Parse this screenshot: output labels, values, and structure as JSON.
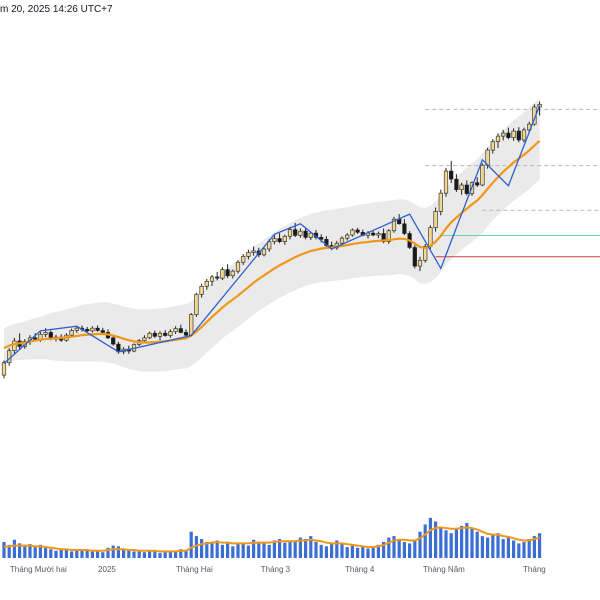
{
  "header": {
    "text": "m 20, 2025 14:26 UTC+7"
  },
  "colors": {
    "candle_up": "#f0d890",
    "candle_down": "#1a1a1a",
    "candle_outline": "#222222",
    "ma_line": "#f0971a",
    "volume_bar": "#3c6fd6",
    "volume_ma": "#f0971a",
    "zigzag": "#2f5fd0",
    "channel_fill": "#d8d8d8",
    "level_green": "#6fd0b8",
    "level_red": "#d04040",
    "level_dashed": "#b8b8b8"
  },
  "chart_data": {
    "type": "candlestick",
    "x_axis_labels": [
      "Tháng Mười hai",
      "2025",
      "Tháng Hai",
      "Tháng 3",
      "Tháng 4",
      "Tháng Năm",
      "Tháng"
    ],
    "x_axis_label_positions": [
      11,
      33,
      61,
      87,
      114,
      141,
      170
    ],
    "price_range": [
      0,
      100
    ],
    "candles": [
      [
        26.0,
        29.8,
        25.2,
        29.2
      ],
      [
        29.2,
        33.0,
        28.4,
        32.3
      ],
      [
        32.3,
        35.6,
        31.4,
        34.8
      ],
      [
        34.8,
        36.8,
        32.5,
        33.4
      ],
      [
        33.4,
        35.3,
        32.8,
        34.7
      ],
      [
        34.7,
        36.3,
        33.8,
        35.6
      ],
      [
        35.6,
        36.8,
        34.7,
        35.2
      ],
      [
        35.2,
        37.2,
        34.6,
        36.5
      ],
      [
        36.5,
        38.1,
        35.8,
        37.0
      ],
      [
        37.0,
        37.5,
        35.0,
        35.6
      ],
      [
        35.6,
        36.4,
        34.7,
        35.8
      ],
      [
        35.8,
        36.5,
        34.6,
        35.0
      ],
      [
        35.0,
        36.8,
        34.6,
        36.3
      ],
      [
        36.3,
        38.0,
        35.7,
        37.5
      ],
      [
        37.5,
        38.6,
        36.9,
        38.1
      ],
      [
        38.1,
        38.8,
        37.2,
        37.8
      ],
      [
        37.8,
        38.4,
        37.0,
        37.4
      ],
      [
        37.4,
        38.6,
        37.0,
        38.1
      ],
      [
        38.1,
        38.8,
        37.2,
        37.5
      ],
      [
        37.5,
        38.2,
        36.6,
        37.0
      ],
      [
        37.0,
        37.8,
        35.3,
        35.6
      ],
      [
        35.6,
        36.2,
        33.6,
        34.0
      ],
      [
        34.0,
        34.6,
        31.5,
        32.0
      ],
      [
        32.0,
        33.2,
        31.4,
        32.7
      ],
      [
        32.7,
        33.6,
        31.5,
        32.2
      ],
      [
        32.2,
        34.2,
        31.9,
        33.9
      ],
      [
        33.9,
        35.3,
        33.5,
        34.9
      ],
      [
        34.9,
        36.3,
        34.2,
        35.6
      ],
      [
        35.6,
        37.2,
        35.3,
        36.8
      ],
      [
        36.8,
        37.5,
        35.6,
        36.0
      ],
      [
        36.0,
        37.3,
        35.0,
        36.8
      ],
      [
        36.8,
        37.6,
        35.9,
        36.2
      ],
      [
        36.2,
        37.8,
        35.6,
        37.2
      ],
      [
        37.2,
        38.6,
        36.6,
        38.0
      ],
      [
        38.0,
        39.0,
        36.8,
        37.0
      ],
      [
        37.0,
        37.8,
        35.7,
        36.3
      ],
      [
        36.3,
        42.0,
        36.0,
        41.6
      ],
      [
        41.6,
        47.2,
        41.0,
        46.8
      ],
      [
        46.8,
        49.5,
        46.0,
        48.9
      ],
      [
        48.9,
        50.8,
        48.0,
        50.2
      ],
      [
        50.2,
        51.8,
        49.0,
        51.3
      ],
      [
        51.3,
        52.6,
        50.4,
        51.0
      ],
      [
        51.0,
        53.8,
        50.5,
        53.2
      ],
      [
        53.2,
        54.6,
        51.0,
        51.6
      ],
      [
        51.6,
        53.2,
        50.9,
        52.8
      ],
      [
        52.8,
        55.6,
        52.2,
        55.1
      ],
      [
        55.1,
        57.2,
        54.4,
        56.6
      ],
      [
        56.6,
        58.3,
        55.8,
        57.6
      ],
      [
        57.6,
        59.2,
        56.8,
        58.0
      ],
      [
        58.0,
        58.8,
        56.4,
        57.0
      ],
      [
        57.0,
        59.0,
        56.6,
        58.5
      ],
      [
        58.5,
        61.0,
        57.8,
        60.4
      ],
      [
        60.4,
        62.1,
        59.7,
        61.2
      ],
      [
        61.2,
        62.6,
        60.0,
        60.4
      ],
      [
        60.4,
        62.2,
        59.6,
        61.8
      ],
      [
        61.8,
        64.2,
        61.0,
        63.5
      ],
      [
        63.5,
        65.2,
        61.6,
        62.0
      ],
      [
        62.0,
        63.8,
        61.4,
        63.1
      ],
      [
        63.1,
        64.0,
        61.0,
        61.5
      ],
      [
        61.5,
        63.0,
        60.8,
        62.6
      ],
      [
        62.6,
        63.4,
        61.0,
        61.5
      ],
      [
        61.5,
        62.3,
        60.2,
        61.0
      ],
      [
        61.0,
        61.8,
        59.0,
        59.4
      ],
      [
        59.4,
        60.4,
        58.2,
        58.8
      ],
      [
        58.8,
        60.6,
        58.3,
        60.0
      ],
      [
        60.0,
        61.8,
        59.5,
        61.3
      ],
      [
        61.3,
        62.6,
        60.7,
        62.1
      ],
      [
        62.1,
        63.8,
        61.7,
        63.4
      ],
      [
        63.4,
        64.0,
        62.4,
        62.8
      ],
      [
        62.8,
        63.5,
        61.8,
        62.0
      ],
      [
        62.0,
        63.1,
        61.2,
        62.6
      ],
      [
        62.6,
        63.4,
        61.8,
        62.1
      ],
      [
        62.1,
        63.0,
        61.3,
        62.5
      ],
      [
        62.5,
        63.8,
        60.0,
        60.4
      ],
      [
        60.4,
        63.6,
        59.8,
        63.2
      ],
      [
        63.2,
        66.8,
        62.7,
        66.2
      ],
      [
        66.2,
        67.5,
        64.8,
        65.0
      ],
      [
        65.0,
        66.2,
        62.1,
        62.5
      ],
      [
        62.5,
        63.1,
        58.5,
        58.9
      ],
      [
        58.9,
        59.5,
        53.5,
        54.1
      ],
      [
        54.1,
        56.5,
        52.8,
        55.6
      ],
      [
        55.6,
        59.8,
        55.0,
        59.2
      ],
      [
        59.2,
        64.6,
        58.5,
        64.0
      ],
      [
        64.0,
        69.2,
        63.0,
        68.2
      ],
      [
        68.2,
        73.8,
        67.2,
        72.9
      ],
      [
        72.9,
        79.4,
        72.0,
        78.6
      ],
      [
        78.6,
        81.2,
        75.5,
        76.5
      ],
      [
        76.5,
        77.8,
        73.2,
        73.8
      ],
      [
        73.8,
        75.6,
        72.5,
        75.0
      ],
      [
        75.0,
        76.2,
        72.3,
        72.8
      ],
      [
        72.8,
        75.9,
        72.2,
        75.6
      ],
      [
        75.6,
        77.0,
        74.5,
        75.0
      ],
      [
        75.0,
        80.6,
        74.7,
        80.1
      ],
      [
        80.1,
        84.6,
        79.2,
        84.0
      ],
      [
        84.0,
        86.8,
        83.1,
        86.2
      ],
      [
        86.2,
        88.3,
        84.5,
        87.6
      ],
      [
        87.6,
        89.2,
        86.5,
        88.4
      ],
      [
        88.4,
        89.8,
        86.8,
        87.2
      ],
      [
        87.2,
        89.6,
        86.4,
        88.9
      ],
      [
        88.9,
        89.9,
        86.0,
        86.6
      ],
      [
        86.6,
        89.8,
        86.0,
        89.2
      ],
      [
        89.2,
        91.3,
        88.5,
        90.7
      ],
      [
        90.7,
        95.8,
        90.3,
        95.1
      ],
      [
        95.1,
        96.5,
        92.9,
        95.8
      ]
    ],
    "volume_range": [
      0,
      100
    ],
    "volumes": [
      22,
      18,
      25,
      20,
      16,
      19,
      15,
      18,
      14,
      12,
      10,
      11,
      13,
      9,
      11,
      10,
      12,
      9,
      11,
      8,
      14,
      17,
      16,
      12,
      10,
      9,
      11,
      8,
      10,
      9,
      7,
      8,
      9,
      10,
      12,
      11,
      36,
      30,
      26,
      22,
      20,
      24,
      18,
      22,
      16,
      19,
      21,
      17,
      25,
      20,
      22,
      18,
      24,
      26,
      21,
      22,
      24,
      28,
      26,
      30,
      22,
      18,
      16,
      20,
      24,
      19,
      15,
      17,
      14,
      16,
      13,
      15,
      18,
      22,
      28,
      30,
      26,
      22,
      20,
      24,
      36,
      46,
      55,
      50,
      42,
      38,
      34,
      40,
      44,
      48,
      40,
      36,
      30,
      28,
      32,
      34,
      26,
      28,
      24,
      20,
      22,
      26,
      30,
      34
    ],
    "ma_line": [
      33.0,
      33.6,
      34.0,
      34.2,
      34.4,
      34.7,
      34.9,
      35.1,
      35.3,
      35.4,
      35.5,
      35.6,
      35.7,
      35.9,
      36.1,
      36.3,
      36.4,
      36.5,
      36.6,
      36.6,
      36.5,
      36.2,
      35.8,
      35.4,
      35.0,
      34.7,
      34.5,
      34.4,
      34.4,
      34.5,
      34.6,
      34.7,
      34.9,
      35.1,
      35.3,
      35.5,
      36.2,
      37.2,
      38.4,
      39.7,
      41.0,
      42.2,
      43.4,
      44.5,
      45.5,
      46.5,
      47.6,
      48.7,
      49.8,
      50.8,
      51.7,
      52.6,
      53.5,
      54.3,
      55.0,
      55.7,
      56.4,
      57.0,
      57.5,
      58.0,
      58.3,
      58.6,
      58.8,
      58.9,
      59.1,
      59.3,
      59.5,
      59.8,
      60.0,
      60.2,
      60.3,
      60.5,
      60.6,
      60.7,
      60.8,
      61.0,
      61.2,
      61.1,
      60.7,
      59.9,
      59.0,
      58.8,
      59.3,
      60.4,
      61.9,
      63.8,
      65.4,
      66.6,
      67.8,
      68.9,
      70.0,
      71.0,
      72.4,
      74.0,
      75.6,
      77.0,
      78.4,
      79.6,
      80.8,
      81.8,
      82.8,
      83.9,
      85.2,
      86.4
    ],
    "volume_ma": [
      15,
      16,
      17,
      17,
      17,
      17,
      16,
      16,
      15,
      14,
      13,
      12,
      12,
      11,
      11,
      11,
      11,
      10,
      10,
      10,
      11,
      12,
      12,
      12,
      11,
      11,
      10,
      10,
      10,
      10,
      9,
      9,
      9,
      9,
      10,
      10,
      14,
      17,
      19,
      20,
      21,
      22,
      21,
      21,
      20,
      20,
      20,
      20,
      21,
      21,
      21,
      21,
      22,
      23,
      23,
      23,
      23,
      24,
      24,
      25,
      24,
      23,
      21,
      20,
      20,
      20,
      19,
      18,
      17,
      16,
      15,
      15,
      16,
      18,
      21,
      24,
      25,
      25,
      24,
      24,
      27,
      32,
      38,
      41,
      42,
      41,
      40,
      40,
      41,
      42,
      41,
      39,
      36,
      33,
      32,
      32,
      30,
      29,
      27,
      25,
      24,
      24,
      26,
      28
    ],
    "zigzag": [
      [
        0,
        29.0
      ],
      [
        7,
        37.4
      ],
      [
        14,
        38.6
      ],
      [
        22,
        32.0
      ],
      [
        36,
        36.2
      ],
      [
        52,
        62.3
      ],
      [
        57,
        65.0
      ],
      [
        63,
        58.5
      ],
      [
        78,
        67.5
      ],
      [
        84,
        53.5
      ],
      [
        92,
        81.5
      ],
      [
        97,
        74.8
      ],
      [
        103,
        95.5
      ]
    ],
    "channel_upper_offset": [
      5.0,
      5.1,
      5.2,
      5.3,
      5.4,
      5.6,
      5.8,
      6.0,
      6.2,
      6.5,
      6.8,
      7.0,
      7.2,
      7.4,
      7.6,
      7.8,
      7.9,
      8.0,
      8.1,
      8.2,
      8.2,
      8.2,
      8.3,
      8.3,
      8.4,
      8.4,
      8.4,
      8.5,
      8.5,
      8.6,
      8.6,
      8.6,
      8.7,
      8.7,
      8.7,
      8.8,
      8.8,
      8.8,
      8.9,
      8.9,
      8.9,
      9.0,
      9.0,
      9.0,
      9.1,
      9.1,
      9.1,
      9.2,
      9.2,
      9.2,
      9.3,
      9.3,
      9.3,
      9.4,
      9.4,
      9.4,
      9.5,
      9.5,
      9.5,
      9.6,
      9.6,
      9.6,
      9.7,
      9.7,
      9.7,
      9.8,
      9.8,
      9.8,
      9.9,
      9.9,
      9.9,
      10.0,
      10.0,
      10.0,
      10.1,
      10.1,
      10.1,
      10.2,
      10.2,
      10.2,
      10.3,
      10.3,
      10.3,
      10.4,
      10.4,
      10.4,
      10.5,
      10.5,
      10.5,
      10.6,
      10.6,
      10.6,
      10.7,
      10.7,
      10.7,
      10.8,
      10.8,
      10.8,
      10.9,
      10.9,
      10.9,
      11.0,
      11.0,
      11.0
    ],
    "channel_lower_offset": [
      -4.0,
      -4.1,
      -4.2,
      -4.3,
      -4.4,
      -4.6,
      -4.8,
      -5.0,
      -5.2,
      -5.5,
      -5.8,
      -6.0,
      -6.2,
      -6.4,
      -6.6,
      -6.8,
      -6.9,
      -7.0,
      -7.1,
      -7.2,
      -7.2,
      -7.2,
      -7.3,
      -7.3,
      -7.4,
      -7.4,
      -7.4,
      -7.5,
      -7.5,
      -7.6,
      -7.6,
      -7.6,
      -7.7,
      -7.7,
      -7.7,
      -7.8,
      -7.8,
      -7.8,
      -7.9,
      -7.9,
      -7.9,
      -8.0,
      -8.0,
      -8.0,
      -8.1,
      -8.1,
      -8.1,
      -8.2,
      -8.2,
      -8.2,
      -8.3,
      -8.3,
      -8.3,
      -8.4,
      -8.4,
      -8.4,
      -8.5,
      -8.5,
      -8.5,
      -8.6,
      -8.6,
      -8.6,
      -8.7,
      -8.7,
      -8.7,
      -8.8,
      -8.8,
      -8.8,
      -8.9,
      -8.9,
      -8.9,
      -9.0,
      -9.0,
      -9.0,
      -9.1,
      -9.1,
      -9.1,
      -9.2,
      -9.2,
      -9.2,
      -9.3,
      -9.3,
      -9.3,
      -9.4,
      -9.4,
      -9.4,
      -9.5,
      -9.5,
      -9.5,
      -9.6,
      -9.6,
      -9.6,
      -9.7,
      -9.7,
      -9.7,
      -9.8,
      -9.8,
      -9.8,
      -9.9,
      -9.9,
      -9.9,
      -10.0,
      -10.0,
      -10.0
    ],
    "horizontal_levels": [
      {
        "price": 94.5,
        "style": "dashed",
        "color_key": "level_dashed",
        "from_index": 81
      },
      {
        "price": 80.0,
        "style": "dashed",
        "color_key": "level_dashed",
        "from_index": 81
      },
      {
        "price": 68.5,
        "style": "dashed",
        "color_key": "level_dashed",
        "from_index": 92
      },
      {
        "price": 62.0,
        "style": "solid",
        "color_key": "level_green",
        "from_index": 84
      },
      {
        "price": 56.5,
        "style": "solid",
        "color_key": "level_red",
        "from_index": 83
      }
    ]
  }
}
